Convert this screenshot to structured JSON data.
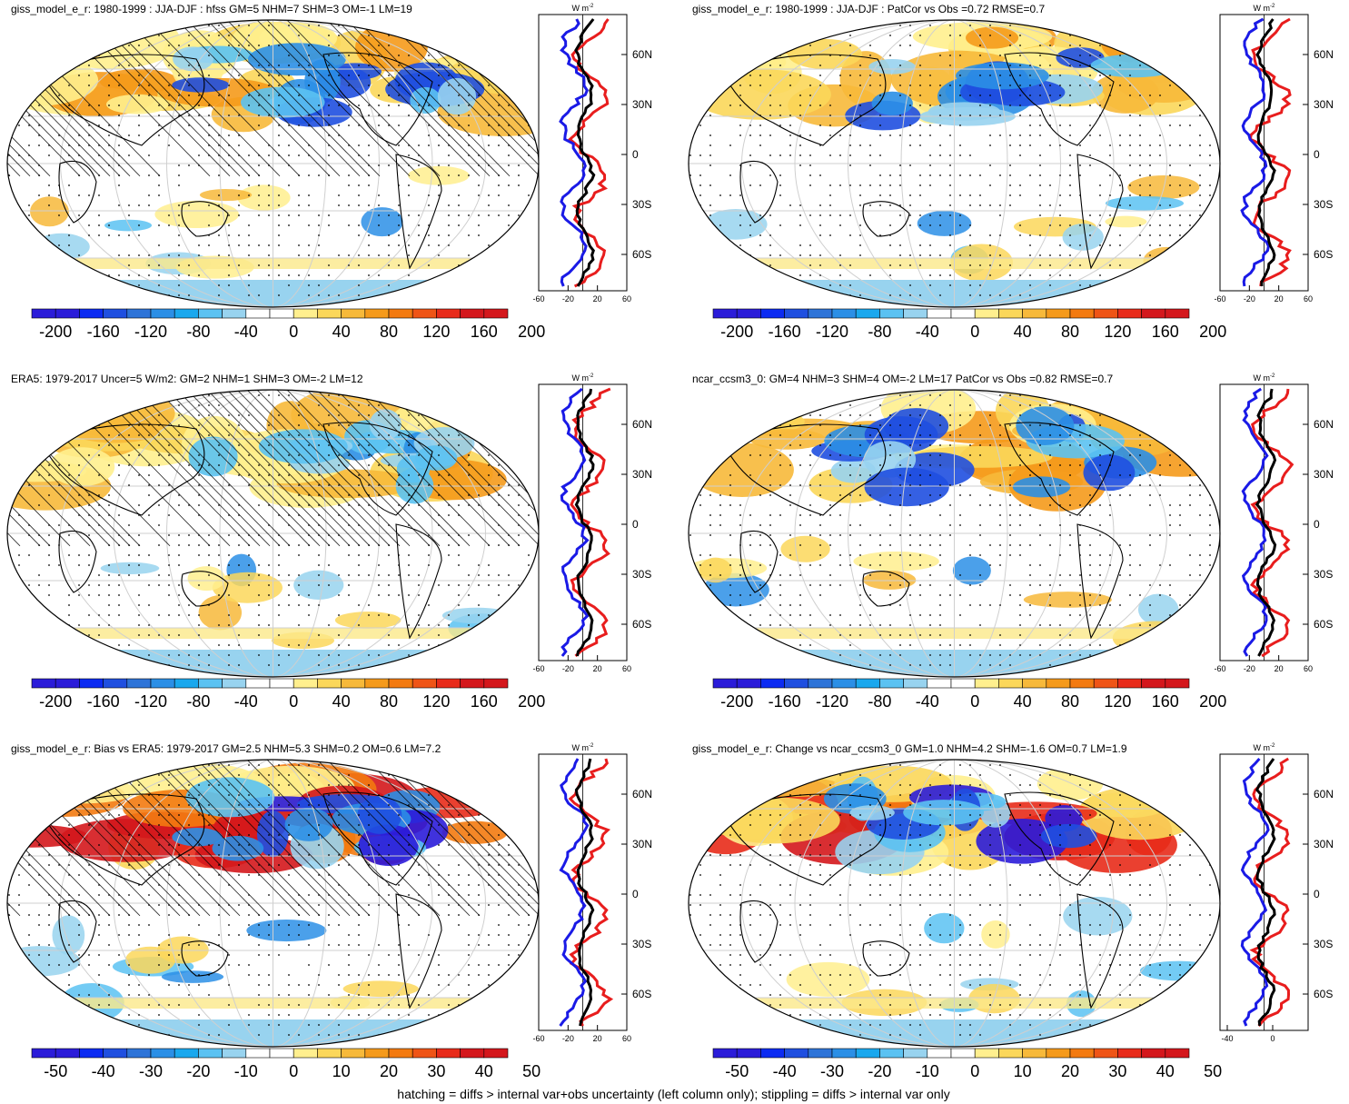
{
  "panels": [
    {
      "title": "giss_model_e_r: 1980-1999 : JJA-DJF : hfss GM=5 NHM=7 SHM=3 OM=-1 LM=19",
      "colorbar_labels": [
        "-200",
        "-160",
        "-120",
        "-80",
        "-40",
        "0",
        "40",
        "80",
        "120",
        "160",
        "200"
      ],
      "profile_x_ticks": [
        "-60",
        "-20",
        "20",
        "60"
      ],
      "hatched": true
    },
    {
      "title": "giss_model_e_r: 1980-1999 : JJA-DJF : PatCor vs Obs =0.72 RMSE=0.7",
      "colorbar_labels": [
        "-200",
        "-160",
        "-120",
        "-80",
        "-40",
        "0",
        "40",
        "80",
        "120",
        "160",
        "200"
      ],
      "profile_x_ticks": [
        "-60",
        "-20",
        "20",
        "60"
      ],
      "hatched": false
    },
    {
      "title": "ERA5: 1979-2017 Uncer=5 W/m2: GM=2 NHM=1 SHM=3 OM=-2 LM=12",
      "colorbar_labels": [
        "-200",
        "-160",
        "-120",
        "-80",
        "-40",
        "0",
        "40",
        "80",
        "120",
        "160",
        "200"
      ],
      "profile_x_ticks": [
        "-60",
        "-20",
        "20",
        "60"
      ],
      "hatched": true
    },
    {
      "title": "ncar_ccsm3_0: GM=4 NHM=3 SHM=4 OM=-2 LM=17 PatCor vs Obs =0.82 RMSE=0.7",
      "colorbar_labels": [
        "-200",
        "-160",
        "-120",
        "-80",
        "-40",
        "0",
        "40",
        "80",
        "120",
        "160",
        "200"
      ],
      "profile_x_ticks": [
        "-60",
        "-20",
        "20",
        "60"
      ],
      "hatched": false
    },
    {
      "title": "giss_model_e_r: Bias vs ERA5: 1979-2017 GM=2.5 NHM=5.3 SHM=0.2 OM=0.6 LM=7.2",
      "colorbar_labels": [
        "-50",
        "-40",
        "-30",
        "-20",
        "-10",
        "0",
        "10",
        "20",
        "30",
        "40",
        "50"
      ],
      "profile_x_ticks": [
        "-60",
        "-20",
        "20",
        "60"
      ],
      "hatched": true
    },
    {
      "title": "giss_model_e_r: Change vs ncar_ccsm3_0 GM=1.0 NHM=4.2 SHM=-1.6 OM=0.7 LM=1.9",
      "colorbar_labels": [
        "-50",
        "-40",
        "-30",
        "-20",
        "-10",
        "0",
        "10",
        "20",
        "30",
        "40",
        "50"
      ],
      "profile_x_ticks": [
        "-40",
        "0"
      ],
      "hatched": false
    }
  ],
  "profile_unit": "W m",
  "profile_unit_sup": "-2",
  "lat_labels": [
    "60N",
    "30N",
    "0",
    "30S",
    "60S"
  ],
  "palette": [
    "#2b1cd9",
    "#0c2bf2",
    "#1f4fe0",
    "#2e74d8",
    "#2b8fe6",
    "#1aa8ee",
    "#5bc2f2",
    "#98d3ef",
    "#ffffff",
    "#ffffff",
    "#ffef8e",
    "#fbd75a",
    "#f7b93a",
    "#f59a1b",
    "#f37a10",
    "#ef5416",
    "#e82b1a",
    "#d4171c"
  ],
  "chart_data": [
    {
      "type": "heatmap",
      "title": "giss_model_e_r: 1980-1999 : JJA-DJF : hfss GM=5 NHM=7 SHM=3 OM=-1 LM=19",
      "levels": [
        -200,
        -180,
        -160,
        -140,
        -120,
        -100,
        -80,
        -60,
        -40,
        -20,
        0,
        20,
        40,
        60,
        80,
        100,
        120,
        140,
        160,
        180,
        200
      ]
    },
    {
      "type": "heatmap",
      "title": "giss_model_e_r: 1980-1999 : JJA-DJF : PatCor vs Obs =0.72 RMSE=0.7",
      "levels": [
        -200,
        -180,
        -160,
        -140,
        -120,
        -100,
        -80,
        -60,
        -40,
        -20,
        0,
        20,
        40,
        60,
        80,
        100,
        120,
        140,
        160,
        180,
        200
      ]
    },
    {
      "type": "heatmap",
      "title": "ERA5: 1979-2017 Uncer=5 W/m2: GM=2 NHM=1 SHM=3 OM=-2 LM=12",
      "levels": [
        -200,
        -180,
        -160,
        -140,
        -120,
        -100,
        -80,
        -60,
        -40,
        -20,
        0,
        20,
        40,
        60,
        80,
        100,
        120,
        140,
        160,
        180,
        200
      ]
    },
    {
      "type": "heatmap",
      "title": "ncar_ccsm3_0: GM=4 NHM=3 SHM=4 OM=-2 LM=17 PatCor vs Obs =0.82 RMSE=0.7",
      "levels": [
        -200,
        -180,
        -160,
        -140,
        -120,
        -100,
        -80,
        -60,
        -40,
        -20,
        0,
        20,
        40,
        60,
        80,
        100,
        120,
        140,
        160,
        180,
        200
      ]
    },
    {
      "type": "heatmap",
      "title": "giss_model_e_r: Bias vs ERA5: 1979-2017 GM=2.5 NHM=5.3 SHM=0.2 OM=0.6 LM=7.2",
      "levels": [
        -50,
        -45,
        -40,
        -35,
        -30,
        -25,
        -20,
        -15,
        -10,
        -5,
        0,
        5,
        10,
        15,
        20,
        25,
        30,
        35,
        40,
        45,
        50
      ]
    },
    {
      "type": "heatmap",
      "title": "giss_model_e_r: Change vs ncar_ccsm3_0 GM=1.0 NHM=4.2 SHM=-1.6 OM=0.7 LM=1.9",
      "levels": [
        -50,
        -45,
        -40,
        -35,
        -30,
        -25,
        -20,
        -15,
        -10,
        -5,
        0,
        5,
        10,
        15,
        20,
        25,
        30,
        35,
        40,
        45,
        50
      ]
    }
  ],
  "footer": "hatching = diffs > internal var+obs uncertainty (left column only); stippling = diffs > internal var only"
}
